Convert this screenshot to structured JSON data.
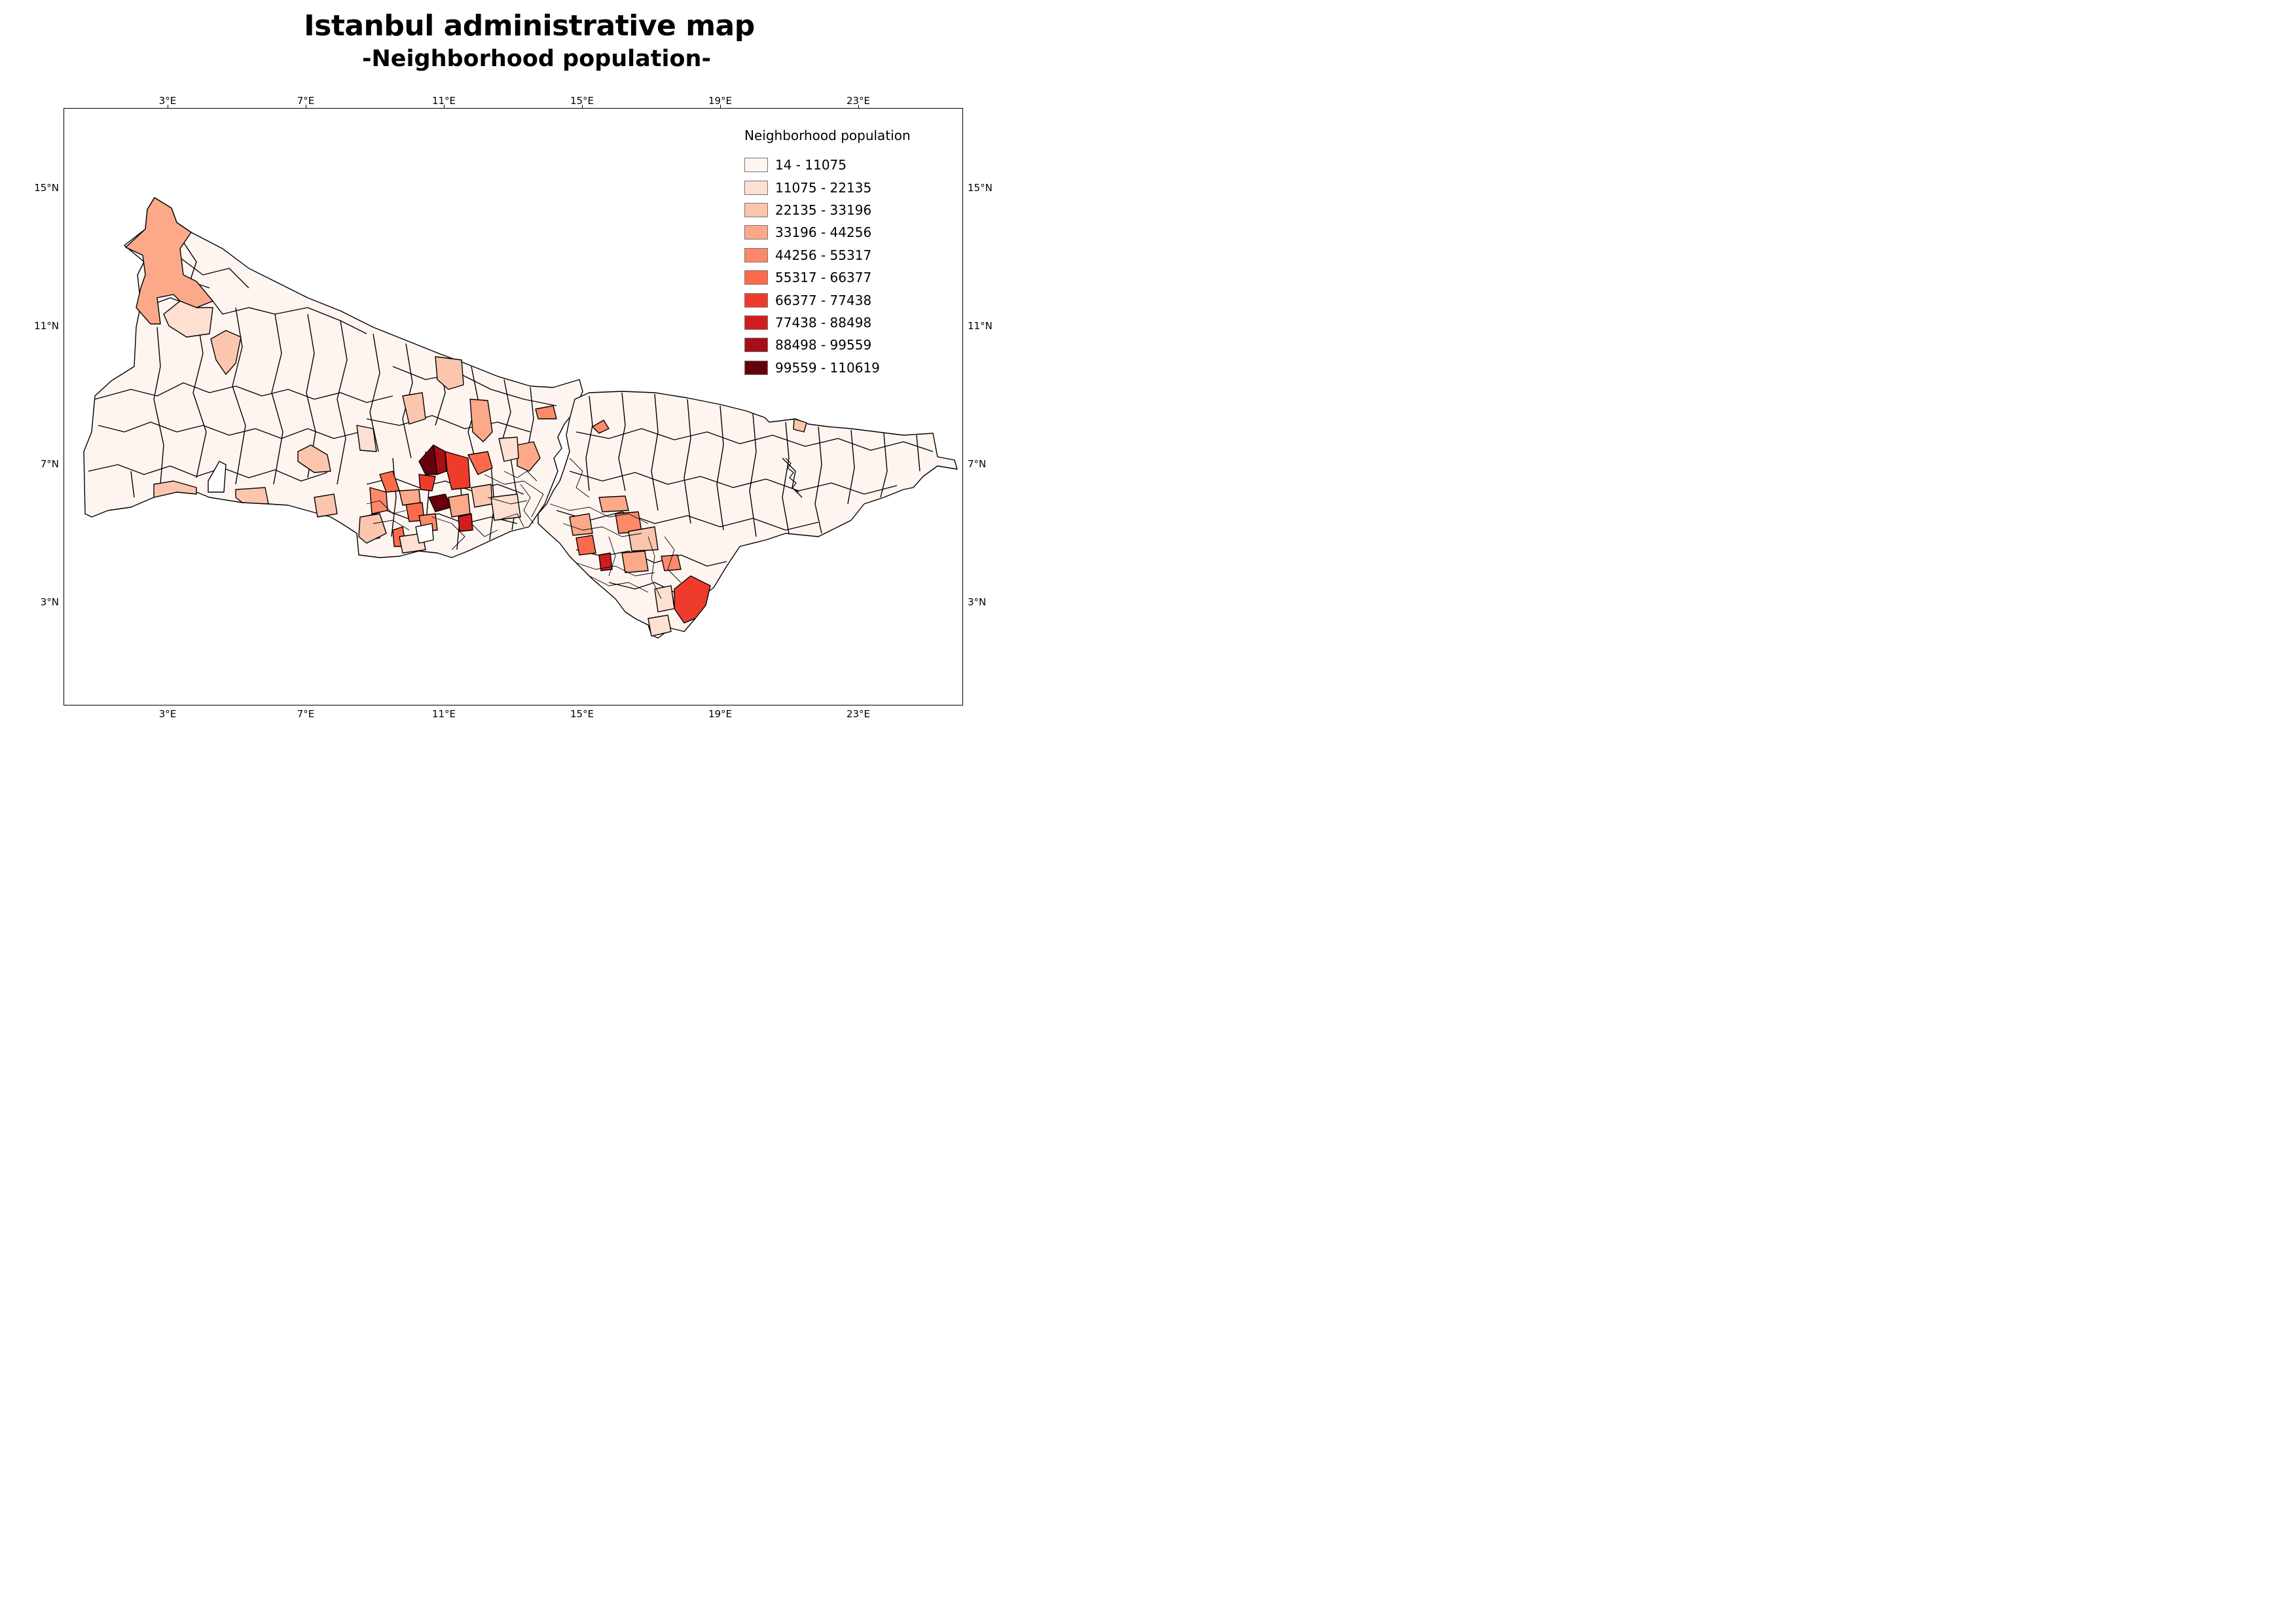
{
  "title": "Istanbul administrative map",
  "subtitle": "-Neighborhood population-",
  "axes": {
    "x_ticks": [
      "3°E",
      "7°E",
      "11°E",
      "15°E",
      "19°E",
      "23°E"
    ],
    "y_ticks": [
      "15°N",
      "11°N",
      "7°N",
      "3°N"
    ]
  },
  "legend": {
    "title": "Neighborhood population",
    "items": [
      {
        "label": "14 - 11075",
        "color": "#fff5f0"
      },
      {
        "label": "11075 - 22135",
        "color": "#fee0d2"
      },
      {
        "label": "22135 - 33196",
        "color": "#fcc5ae"
      },
      {
        "label": "33196 - 44256",
        "color": "#fca98a"
      },
      {
        "label": "44256 - 55317",
        "color": "#fc8a6a"
      },
      {
        "label": "55317 - 66377",
        "color": "#fb6b4b"
      },
      {
        "label": "66377 - 77438",
        "color": "#ef3b2c"
      },
      {
        "label": "77438 - 88498",
        "color": "#d01d1f"
      },
      {
        "label": "88498 - 99559",
        "color": "#a50f15"
      },
      {
        "label": "99559 - 110619",
        "color": "#67000d"
      }
    ]
  },
  "map": {
    "border_color": "#000000",
    "base_fill": "#fff5f0"
  }
}
